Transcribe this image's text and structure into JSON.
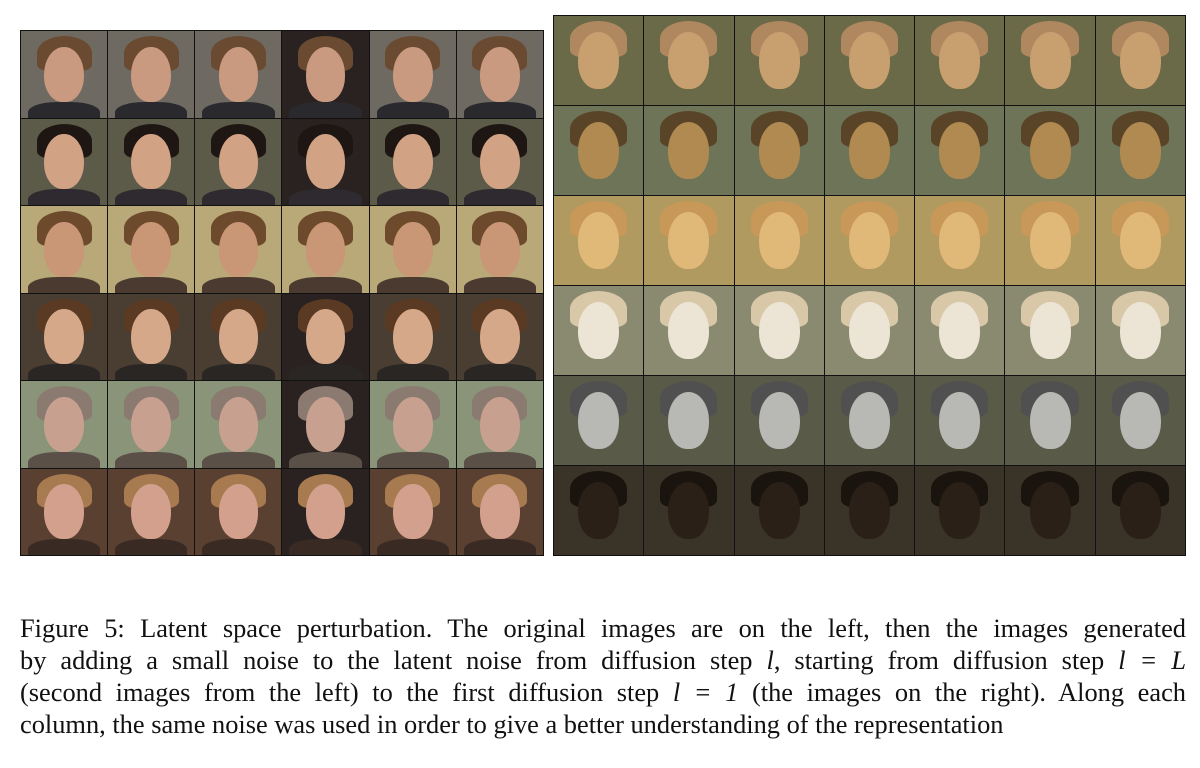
{
  "caption": {
    "lines": [
      [
        "Figure 5: Latent space perturbation. The original images are on the left, then the images generated"
      ],
      [
        "by adding a small noise to the latent noise from diffusion step ",
        "l",
        ", starting from diffusion step ",
        "l = L"
      ],
      [
        "(second images from the left) to the first diffusion step ",
        "l = 1",
        " (the images on the right). Along each"
      ],
      [
        "column, the same noise was used in order to give a better understanding of the representation"
      ]
    ]
  }
}
